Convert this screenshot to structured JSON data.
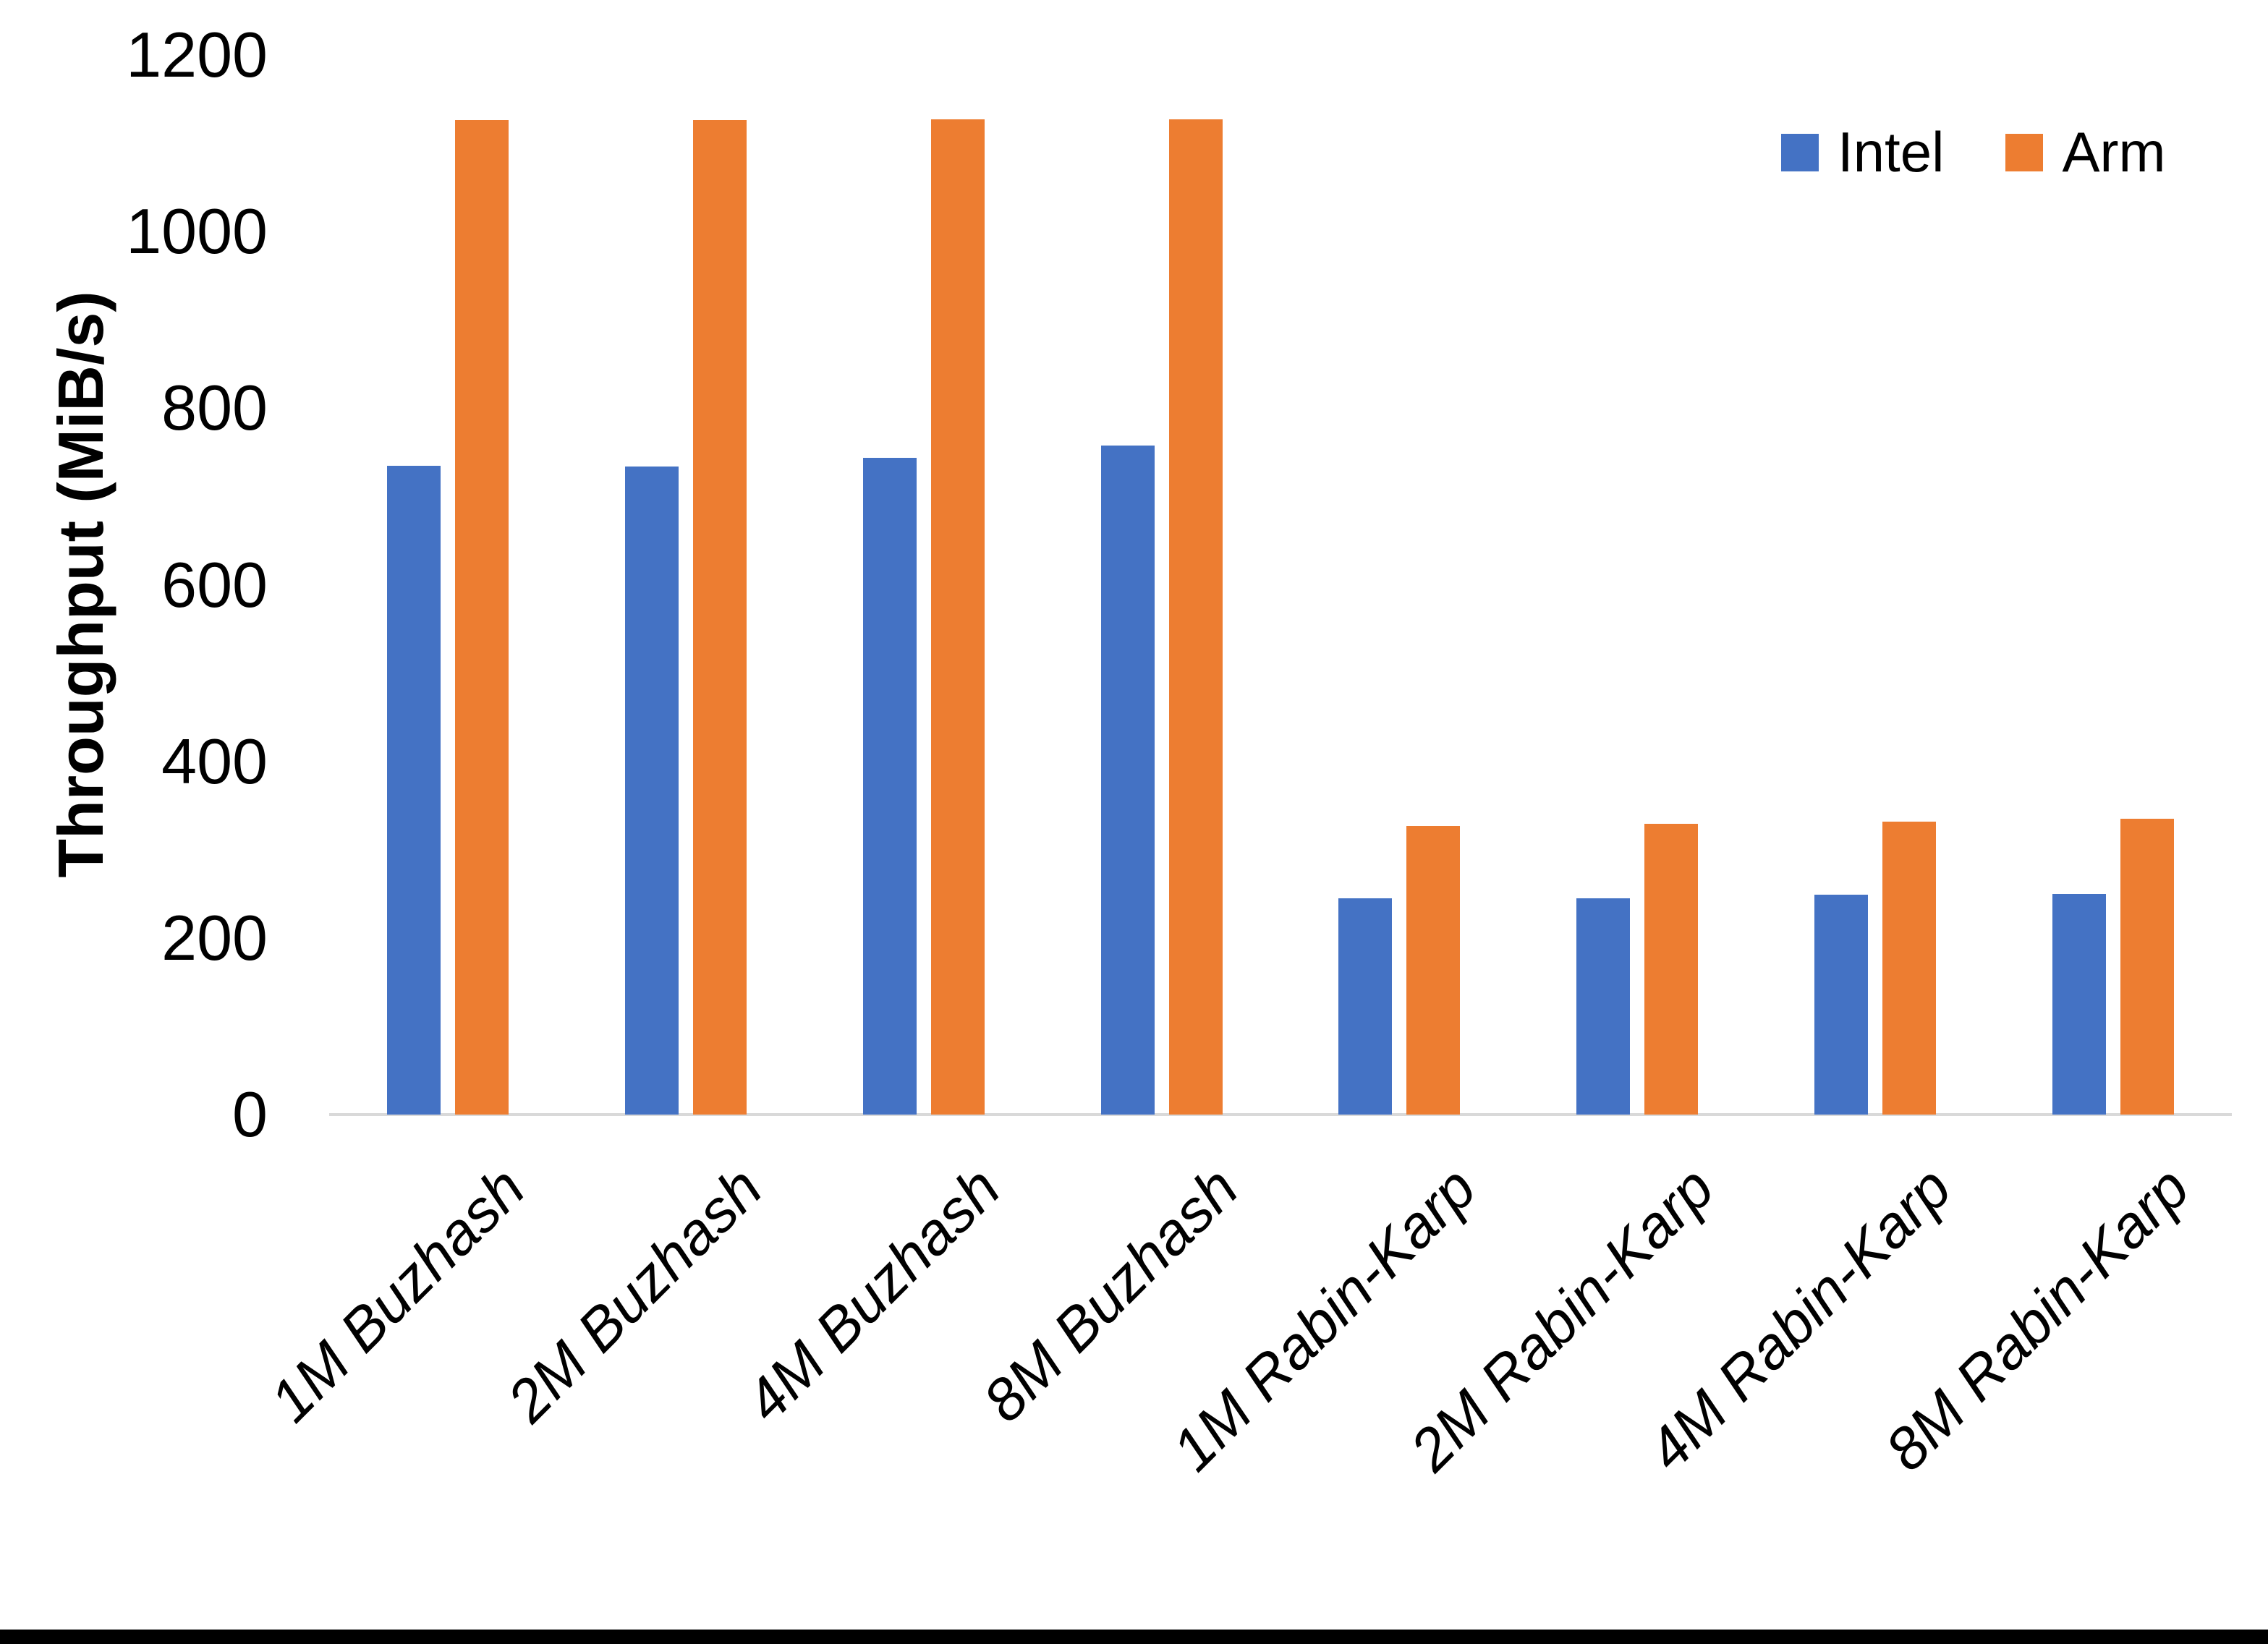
{
  "colors": {
    "intel": "#4472C4",
    "arm": "#ED7D31",
    "axis_line": "#D9D9D9",
    "text": "#000000",
    "background": "#FFFFFF",
    "bottom_border": "#000000"
  },
  "legend": {
    "items": [
      {
        "label": "Intel",
        "color": "#4472C4"
      },
      {
        "label": "Arm",
        "color": "#ED7D31"
      }
    ]
  },
  "chart_data": {
    "type": "bar",
    "title": "",
    "xlabel": "",
    "ylabel": "Throughput (MiB/s)",
    "ylim": [
      0,
      1200
    ],
    "ytick_interval": 200,
    "ytick_labels": [
      "0",
      "200",
      "400",
      "600",
      "800",
      "1000",
      "1200"
    ],
    "grid": false,
    "legend_position": "top-right",
    "categories": [
      "1M Buzhash",
      "2M Buzhash",
      "4M Buzhash",
      "8M Buzhash",
      "1M Rabin-Karp",
      "2M Rabin-Karp",
      "4M Rabin-Karp",
      "8M Rabin-Karp"
    ],
    "series": [
      {
        "name": "Intel",
        "color": "#4472C4",
        "values": [
          735,
          734,
          744,
          758,
          245,
          245,
          249,
          250
        ]
      },
      {
        "name": "Arm",
        "color": "#ED7D31",
        "values": [
          1126,
          1126,
          1127,
          1127,
          327,
          329,
          332,
          335
        ]
      }
    ]
  }
}
